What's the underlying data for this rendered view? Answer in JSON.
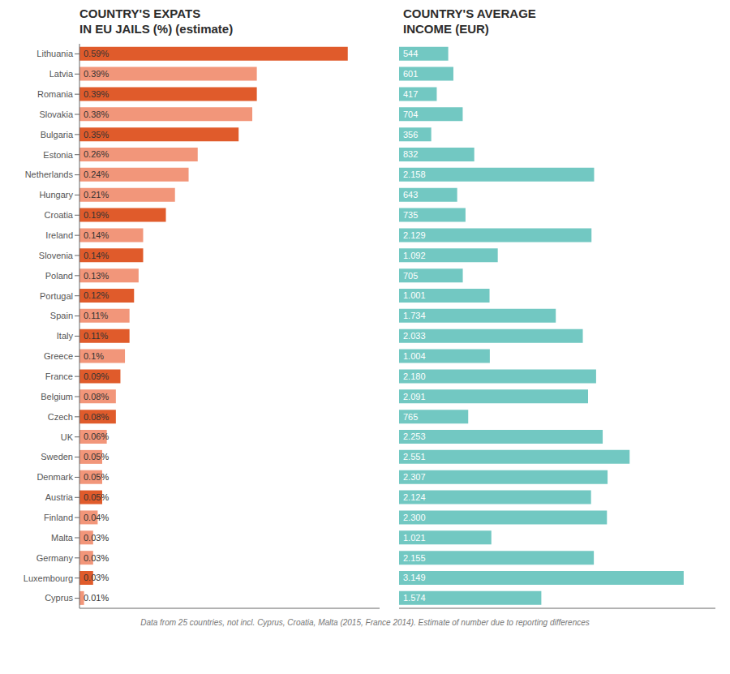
{
  "chart_data": [
    {
      "type": "bar",
      "orientation": "horizontal",
      "title": "COUNTRY'S EXPATS\nIN EU JAILS (%) (estimate)",
      "categories": [
        "Lithuania",
        "Latvia",
        "Romania",
        "Slovakia",
        "Bulgaria",
        "Estonia",
        "Netherlands",
        "Hungary",
        "Croatia",
        "Ireland",
        "Slovenia",
        "Poland",
        "Portugal",
        "Spain",
        "Italy",
        "Greece",
        "France",
        "Belgium",
        "Czech",
        "UK",
        "Sweden",
        "Denmark",
        "Austria",
        "Finland",
        "Malta",
        "Germany",
        "Luxembourg",
        "Cyprus"
      ],
      "values": [
        0.59,
        0.39,
        0.39,
        0.38,
        0.35,
        0.26,
        0.24,
        0.21,
        0.19,
        0.14,
        0.14,
        0.13,
        0.12,
        0.11,
        0.11,
        0.1,
        0.09,
        0.08,
        0.08,
        0.06,
        0.05,
        0.05,
        0.05,
        0.04,
        0.03,
        0.03,
        0.03,
        0.01
      ],
      "value_labels": [
        "0.59%",
        "0.39%",
        "0.39%",
        "0.38%",
        "0.35%",
        "0.26%",
        "0.24%",
        "0.21%",
        "0.19%",
        "0.14%",
        "0.14%",
        "0.13%",
        "0.12%",
        "0.11%",
        "0.11%",
        "0.1%",
        "0.09%",
        "0.08%",
        "0.08%",
        "0.06%",
        "0.05%",
        "0.05%",
        "0.05%",
        "0.04%",
        "0.03%",
        "0.03%",
        "0.03%",
        "0.01%"
      ],
      "colors": [
        "#E05B2B",
        "#F2967A",
        "#E05B2B",
        "#F2967A",
        "#E05B2B",
        "#F2967A",
        "#F2967A",
        "#F2967A",
        "#E05B2B",
        "#F2967A",
        "#E05B2B",
        "#F2967A",
        "#E05B2B",
        "#F2967A",
        "#E05B2B",
        "#F2967A",
        "#E05B2B",
        "#F2967A",
        "#E05B2B",
        "#F2967A",
        "#F2967A",
        "#F2967A",
        "#E05B2B",
        "#F2967A",
        "#F2967A",
        "#F2967A",
        "#E05B2B",
        "#F2967A"
      ],
      "xlim": [
        0,
        0.66
      ],
      "data_labels": true,
      "tick_labels": "y",
      "grid": false,
      "annotations": [
        "Data from 25 countries, not incl. Cyprus, Croatia, Malta (2015, France 2014). Estimate of number due to reporting differences"
      ]
    },
    {
      "type": "bar",
      "orientation": "horizontal",
      "title": "COUNTRY'S AVERAGE\nINCOME (EUR)",
      "categories": [
        "Lithuania",
        "Latvia",
        "Romania",
        "Slovakia",
        "Bulgaria",
        "Estonia",
        "Netherlands",
        "Hungary",
        "Croatia",
        "Ireland",
        "Slovenia",
        "Poland",
        "Portugal",
        "Spain",
        "Italy",
        "Greece",
        "France",
        "Belgium",
        "Czech",
        "UK",
        "Sweden",
        "Denmark",
        "Austria",
        "Finland",
        "Malta",
        "Germany",
        "Luxembourg",
        "Cyprus"
      ],
      "values": [
        544,
        601,
        417,
        704,
        356,
        832,
        2158,
        643,
        735,
        2129,
        1092,
        705,
        1001,
        1734,
        2033,
        1004,
        2180,
        2091,
        765,
        2253,
        2551,
        2307,
        2124,
        2300,
        1021,
        2155,
        3149,
        1574
      ],
      "value_labels": [
        "544",
        "601",
        "417",
        "704",
        "356",
        "832",
        "2.158",
        "643",
        "735",
        "2.129",
        "1.092",
        "705",
        "1.001",
        "1.734",
        "2.033",
        "1.004",
        "2.180",
        "2.091",
        "765",
        "2.253",
        "2.551",
        "2.307",
        "2.124",
        "2.300",
        "1.021",
        "2.155",
        "3.149",
        "1.574"
      ],
      "color": "#72C8C2",
      "xlim": [
        0,
        3500
      ],
      "data_labels": true,
      "tick_labels": false,
      "grid": false
    }
  ]
}
